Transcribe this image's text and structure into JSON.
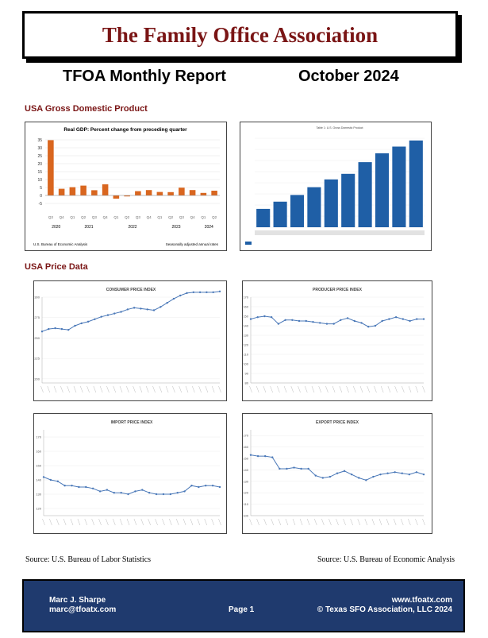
{
  "header": {
    "org_title": "The Family Office Association",
    "report_title": "TFOA Monthly Report",
    "report_date": "October 2024"
  },
  "sections": {
    "gdp_label": "USA Gross Domestic Product",
    "price_label": "USA Price Data"
  },
  "colors": {
    "accent": "#7a1515",
    "gdp_bar": "#d9661f",
    "bar_blue": "#1f5fa6",
    "line_blue": "#4a78b8",
    "footer_bg": "#1f3a6e"
  },
  "chart_data": [
    {
      "id": "gdp-quarterly",
      "type": "bar",
      "title": "Real GDP: Percent change from preceding quarter",
      "categories": [
        "Q3",
        "Q4",
        "Q1",
        "Q2",
        "Q3",
        "Q4",
        "Q1",
        "Q2",
        "Q3",
        "Q4",
        "Q1",
        "Q2",
        "Q3",
        "Q4",
        "Q1",
        "Q2"
      ],
      "year_labels": [
        "2020",
        "2021",
        "2022",
        "2023",
        "2024"
      ],
      "values": [
        34.8,
        4.2,
        5.2,
        6.2,
        3.3,
        7.0,
        -2.0,
        -0.6,
        2.7,
        3.4,
        2.2,
        2.1,
        4.9,
        3.4,
        1.6,
        3.0
      ],
      "yticks": [
        35,
        30,
        25,
        20,
        15,
        10,
        5,
        0,
        -5
      ],
      "ylim": [
        -5,
        35
      ],
      "source_note": "U.S. Bureau of Economic Analysis",
      "adjust_note": "Seasonally adjusted annual rates"
    },
    {
      "id": "gdp-annual",
      "type": "bar",
      "title": "Table 1: U.S. Gross Domestic Product",
      "values": [
        3.3,
        4.6,
        5.8,
        7.2,
        8.6,
        9.6,
        11.7,
        13.3,
        14.5,
        15.6
      ],
      "ylim": [
        0,
        16
      ]
    },
    {
      "id": "consumer-price-index",
      "type": "line",
      "title": "CONSUMER PRICE INDEX",
      "yticks": [
        300,
        275,
        250,
        225,
        200
      ],
      "ylim": [
        195,
        300
      ],
      "values": [
        258,
        261,
        262,
        261,
        260,
        265,
        268,
        270,
        273,
        276,
        278,
        280,
        282,
        285,
        287,
        286,
        285,
        284,
        288,
        293,
        298,
        302,
        305,
        306,
        306,
        306,
        306,
        307
      ]
    },
    {
      "id": "producer-price-index",
      "type": "line",
      "title": "PRODUCER PRICE INDEX",
      "yticks": [
        170,
        160,
        150,
        140,
        130,
        120,
        110,
        100,
        90,
        80
      ],
      "ylim": [
        80,
        170
      ],
      "values": [
        147,
        149,
        150,
        149,
        142,
        146,
        146,
        145,
        145,
        144,
        143,
        142,
        142,
        146,
        148,
        145,
        143,
        139,
        140,
        145,
        147,
        149,
        147,
        145,
        147,
        147
      ]
    },
    {
      "id": "import-price-index",
      "type": "line",
      "title": "IMPORT PRICE INDEX",
      "yticks": [
        170,
        160,
        150,
        140,
        130,
        120
      ],
      "ylim": [
        115,
        175
      ],
      "values": [
        142,
        140,
        139,
        136,
        136,
        135,
        135,
        134,
        132,
        133,
        131,
        131,
        130,
        132,
        133,
        131,
        130,
        130,
        130,
        131,
        132,
        136,
        135,
        136,
        136,
        135
      ]
    },
    {
      "id": "export-price-index",
      "type": "line",
      "title": "EXPORT PRICE INDEX",
      "yticks": [
        170,
        160,
        150,
        140,
        130,
        120,
        110,
        100
      ],
      "ylim": [
        100,
        175
      ],
      "values": [
        153,
        152,
        152,
        151,
        141,
        141,
        142,
        141,
        141,
        135,
        133,
        134,
        137,
        139,
        136,
        133,
        131,
        134,
        136,
        137,
        138,
        137,
        136,
        138,
        136
      ]
    }
  ],
  "sources": {
    "left": "Source: U.S. Bureau of Labor Statistics",
    "right": "Source: U.S. Bureau of Economic Analysis"
  },
  "footer": {
    "author": "Marc J. Sharpe",
    "email": "marc@tfoatx.com",
    "page": "Page 1",
    "website": "www.tfoatx.com",
    "copyright": "© Texas SFO Association, LLC 2024"
  }
}
